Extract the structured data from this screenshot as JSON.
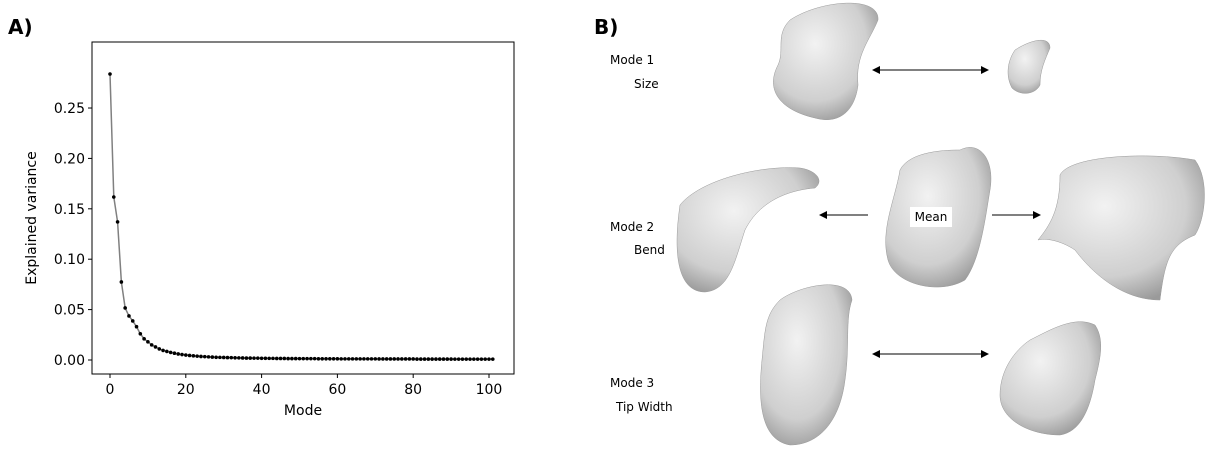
{
  "panel_labels": [
    "A)",
    "B)"
  ],
  "chart_data": {
    "type": "line",
    "xlabel": "Mode",
    "ylabel": "Explained variance",
    "x": [
      0,
      1,
      2,
      3,
      4,
      5,
      6,
      7,
      8,
      9,
      10,
      11,
      12,
      13,
      14,
      15,
      16,
      17,
      18,
      19,
      20,
      21,
      22,
      23,
      24,
      25,
      26,
      27,
      28,
      29,
      30,
      31,
      32,
      33,
      34,
      35,
      36,
      37,
      38,
      39,
      40,
      41,
      42,
      43,
      44,
      45,
      46,
      47,
      48,
      49,
      50,
      51,
      52,
      53,
      54,
      55,
      56,
      57,
      58,
      59,
      60,
      61,
      62,
      63,
      64,
      65,
      66,
      67,
      68,
      69,
      70,
      71,
      72,
      73,
      74,
      75,
      76,
      77,
      78,
      79,
      80,
      81,
      82,
      83,
      84,
      85,
      86,
      87,
      88,
      89,
      90,
      91,
      92,
      93,
      94,
      95,
      96,
      97,
      98,
      99,
      100,
      101
    ],
    "values": [
      0.2837,
      0.1617,
      0.137,
      0.0774,
      0.0516,
      0.0437,
      0.0387,
      0.033,
      0.026,
      0.021,
      0.018,
      0.015,
      0.013,
      0.011,
      0.0095,
      0.0085,
      0.0075,
      0.0067,
      0.006,
      0.0054,
      0.0049,
      0.0045,
      0.0041,
      0.0038,
      0.0035,
      0.0033,
      0.0031,
      0.0029,
      0.0027,
      0.0026,
      0.0025,
      0.0024,
      0.0023,
      0.0022,
      0.0021,
      0.002,
      0.0019,
      0.0019,
      0.0018,
      0.0018,
      0.0017,
      0.0017,
      0.0016,
      0.0016,
      0.0015,
      0.0015,
      0.0015,
      0.0014,
      0.0014,
      0.0014,
      0.0013,
      0.0013,
      0.0013,
      0.0013,
      0.0013,
      0.0012,
      0.0012,
      0.0012,
      0.0012,
      0.0012,
      0.0012,
      0.0011,
      0.0011,
      0.0011,
      0.0011,
      0.0011,
      0.0011,
      0.0011,
      0.0011,
      0.0011,
      0.0011,
      0.001,
      0.001,
      0.001,
      0.001,
      0.001,
      0.001,
      0.001,
      0.001,
      0.001,
      0.001,
      0.0009,
      0.0009,
      0.0009,
      0.0009,
      0.0009,
      0.0009,
      0.0009,
      0.0009,
      0.0009,
      0.0009,
      0.0008,
      0.0008,
      0.0008,
      0.0008,
      0.0008,
      0.0008,
      0.0008,
      0.0008,
      0.0008,
      0.0008,
      0.0008
    ],
    "line_color": "#808080",
    "marker_color": "#000000",
    "xlim": [
      -4.75,
      106.6
    ],
    "ylim": [
      -0.0139,
      0.3155
    ],
    "xticks": [
      0,
      20,
      40,
      60,
      80,
      100
    ],
    "yticks": [
      {
        "value": 0,
        "label": "0.00"
      },
      0.05,
      {
        "value": 0.1,
        "label": "0.10"
      },
      0.15,
      {
        "value": 0.2,
        "label": "0.20"
      },
      0.25
    ]
  },
  "shape_modes": {
    "modes": [
      {
        "name": "Mode 1",
        "description": "Size"
      },
      {
        "name": "Mode 2",
        "description": "Bend"
      },
      {
        "name": "Mode 3",
        "description": "Tip Width"
      }
    ],
    "mean_label": "Mean"
  }
}
